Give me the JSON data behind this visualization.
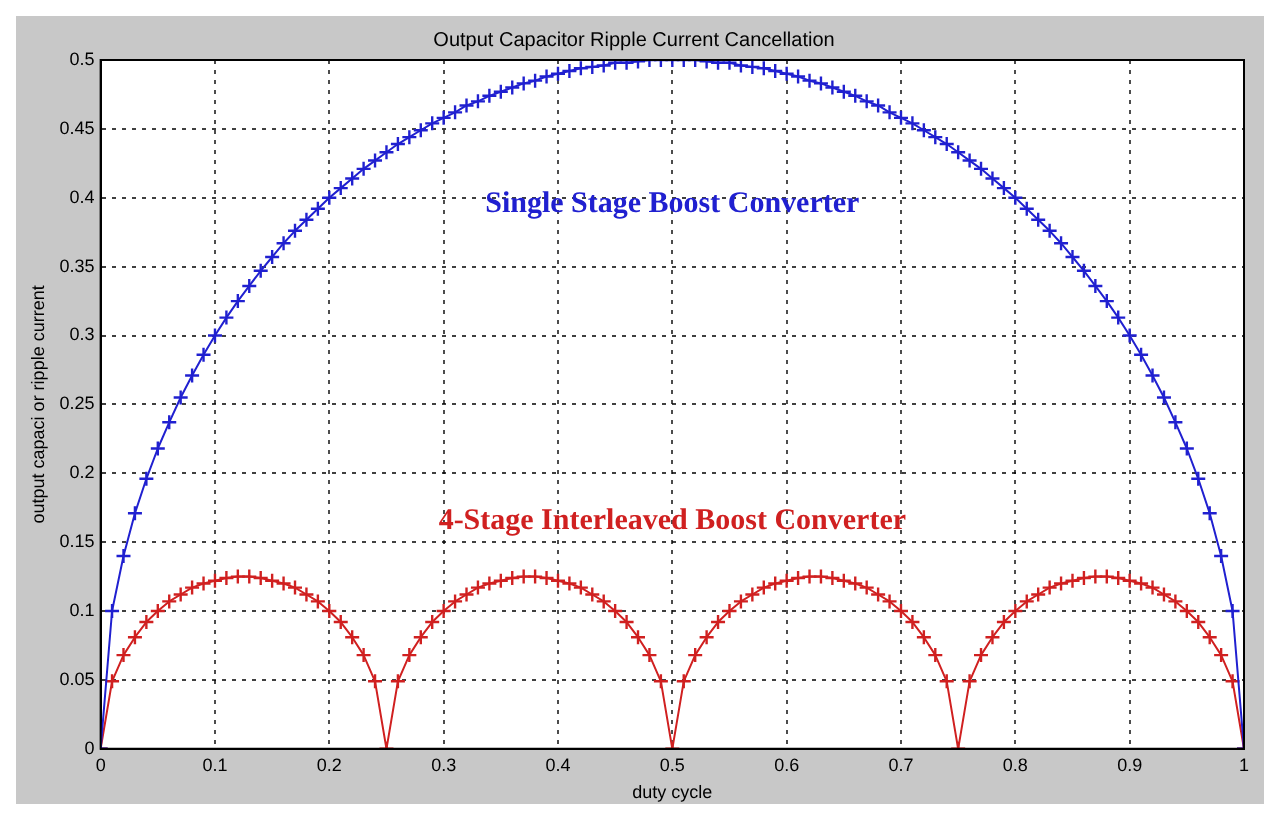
{
  "chart_data": {
    "type": "line",
    "title": "Output Capacitor Ripple Current Cancellation",
    "xlabel": "duty cycle",
    "ylabel": "output capaci or ripple current",
    "x": [
      0,
      0.01,
      0.02,
      0.03,
      0.04,
      0.05,
      0.06,
      0.07,
      0.08,
      0.09,
      0.1,
      0.11,
      0.12,
      0.13,
      0.14,
      0.15,
      0.16,
      0.17,
      0.18,
      0.19,
      0.2,
      0.21,
      0.22,
      0.23,
      0.24,
      0.25,
      0.26,
      0.27,
      0.28,
      0.29,
      0.3,
      0.31,
      0.32,
      0.33,
      0.34,
      0.35,
      0.36,
      0.37,
      0.38,
      0.39,
      0.4,
      0.41,
      0.42,
      0.43,
      0.44,
      0.45,
      0.46,
      0.47,
      0.48,
      0.49,
      0.5,
      0.51,
      0.52,
      0.53,
      0.54,
      0.55,
      0.56,
      0.57,
      0.58,
      0.59,
      0.6,
      0.61,
      0.62,
      0.63,
      0.64,
      0.65,
      0.66,
      0.67,
      0.68,
      0.69,
      0.7,
      0.71,
      0.72,
      0.73,
      0.74,
      0.75,
      0.76,
      0.77,
      0.78,
      0.79,
      0.8,
      0.81,
      0.82,
      0.83,
      0.84,
      0.85,
      0.86,
      0.87,
      0.88,
      0.89,
      0.9,
      0.91,
      0.92,
      0.93,
      0.94,
      0.95,
      0.96,
      0.97,
      0.98,
      0.99,
      1
    ],
    "series": [
      {
        "name": "Single Stage Boost Converter",
        "color": "#2020d0",
        "values": [
          0,
          0.1,
          0.14,
          0.171,
          0.196,
          0.218,
          0.237,
          0.255,
          0.271,
          0.286,
          0.3,
          0.313,
          0.325,
          0.336,
          0.347,
          0.357,
          0.367,
          0.376,
          0.384,
          0.392,
          0.4,
          0.407,
          0.414,
          0.421,
          0.427,
          0.433,
          0.439,
          0.444,
          0.449,
          0.454,
          0.458,
          0.462,
          0.467,
          0.47,
          0.474,
          0.477,
          0.48,
          0.483,
          0.485,
          0.488,
          0.49,
          0.492,
          0.494,
          0.495,
          0.496,
          0.498,
          0.498,
          0.499,
          0.5,
          0.5,
          0.5,
          0.5,
          0.5,
          0.499,
          0.498,
          0.498,
          0.496,
          0.495,
          0.494,
          0.492,
          0.49,
          0.488,
          0.485,
          0.483,
          0.48,
          0.477,
          0.474,
          0.47,
          0.467,
          0.462,
          0.458,
          0.454,
          0.449,
          0.444,
          0.439,
          0.433,
          0.427,
          0.421,
          0.414,
          0.407,
          0.4,
          0.392,
          0.384,
          0.376,
          0.367,
          0.357,
          0.347,
          0.336,
          0.325,
          0.313,
          0.3,
          0.286,
          0.271,
          0.255,
          0.237,
          0.218,
          0.196,
          0.171,
          0.14,
          0.1,
          0
        ]
      },
      {
        "name": "4-Stage Interleaved Boost Converter",
        "color": "#d02020",
        "values": [
          0,
          0.049,
          0.068,
          0.081,
          0.092,
          0.1,
          0.107,
          0.112,
          0.117,
          0.12,
          0.122,
          0.124,
          0.125,
          0.125,
          0.124,
          0.122,
          0.12,
          0.117,
          0.112,
          0.107,
          0.1,
          0.092,
          0.081,
          0.068,
          0.049,
          0,
          0.049,
          0.068,
          0.081,
          0.092,
          0.1,
          0.107,
          0.112,
          0.117,
          0.12,
          0.122,
          0.124,
          0.125,
          0.125,
          0.124,
          0.122,
          0.12,
          0.117,
          0.112,
          0.107,
          0.1,
          0.092,
          0.081,
          0.068,
          0.049,
          0,
          0.049,
          0.068,
          0.081,
          0.092,
          0.1,
          0.107,
          0.112,
          0.117,
          0.12,
          0.122,
          0.124,
          0.125,
          0.125,
          0.124,
          0.122,
          0.12,
          0.117,
          0.112,
          0.107,
          0.1,
          0.092,
          0.081,
          0.068,
          0.049,
          0,
          0.049,
          0.068,
          0.081,
          0.092,
          0.1,
          0.107,
          0.112,
          0.117,
          0.12,
          0.122,
          0.124,
          0.125,
          0.125,
          0.124,
          0.122,
          0.12,
          0.117,
          0.112,
          0.107,
          0.1,
          0.092,
          0.081,
          0.068,
          0.049,
          0
        ]
      }
    ],
    "xlim": [
      0,
      1
    ],
    "xticks": [
      0,
      0.1,
      0.2,
      0.3,
      0.4,
      0.5,
      0.6,
      0.7,
      0.8,
      0.9,
      1
    ],
    "ylim": [
      0,
      0.5
    ],
    "yticks": [
      0,
      0.05,
      0.1,
      0.15,
      0.2,
      0.25,
      0.3,
      0.35,
      0.4,
      0.45,
      0.5
    ],
    "grid": true,
    "marker": "cross",
    "line_style": "solid",
    "legend": false
  }
}
